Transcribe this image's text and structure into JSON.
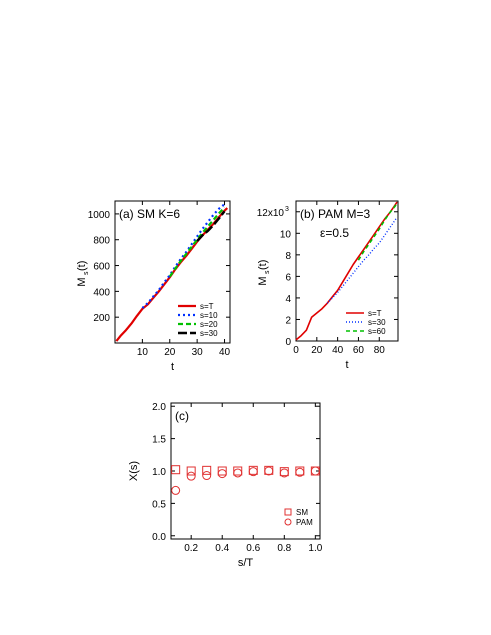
{
  "chart_data": [
    {
      "type": "line",
      "panel_label": "(a) SM  K=6",
      "xlabel": "t",
      "ylabel": "M",
      "ylabel_sub": "s",
      "ylabel_tail": "(t)",
      "xlim": [
        0,
        42
      ],
      "ylim": [
        0,
        1100
      ],
      "xticks": [
        10,
        20,
        30,
        40
      ],
      "yticks": [
        200,
        400,
        600,
        800,
        1000
      ],
      "legend_position": "bottom-right",
      "series": [
        {
          "name": "s=T",
          "color": "#e00000",
          "dash": "solid",
          "width": 2.2,
          "x": [
            0.5,
            2,
            4,
            6,
            8,
            10,
            12,
            14,
            16,
            18,
            20,
            22,
            24,
            26,
            28,
            30,
            32,
            34,
            36,
            38,
            40,
            41
          ],
          "y": [
            15,
            55,
            100,
            150,
            210,
            265,
            300,
            350,
            400,
            455,
            510,
            570,
            625,
            675,
            730,
            785,
            835,
            880,
            925,
            975,
            1025,
            1045
          ]
        },
        {
          "name": "s=10",
          "color": "#0030ff",
          "dash": "2,3",
          "width": 2.2,
          "x": [
            10,
            12,
            14,
            16,
            18,
            20,
            22,
            24,
            26,
            28,
            30,
            32,
            34,
            36,
            38,
            40
          ],
          "y": [
            270,
            310,
            360,
            410,
            470,
            525,
            590,
            650,
            705,
            765,
            825,
            885,
            940,
            995,
            1040,
            1075
          ]
        },
        {
          "name": "s=20",
          "color": "#00c000",
          "dash": "5,3",
          "width": 2.2,
          "x": [
            20,
            22,
            24,
            26,
            28,
            30,
            32,
            34,
            36,
            38,
            40
          ],
          "y": [
            515,
            575,
            635,
            690,
            745,
            800,
            855,
            905,
            955,
            1005,
            1050
          ]
        },
        {
          "name": "s=30",
          "color": "#000000",
          "dash": "9,3",
          "width": 2.4,
          "x": [
            30,
            32,
            34,
            36,
            38,
            40
          ],
          "y": [
            790,
            835,
            870,
            915,
            965,
            1020
          ]
        }
      ]
    },
    {
      "type": "line",
      "panel_label": "(b) PAM  M=3",
      "annotation": "ε=0.5",
      "xlabel": "t",
      "ylabel": "M",
      "ylabel_sub": "s",
      "ylabel_tail": "(t)",
      "xlim": [
        0,
        98
      ],
      "ylim": [
        0,
        13000
      ],
      "xticks": [
        0,
        20,
        40,
        60,
        80
      ],
      "yticks": [
        0,
        2,
        4,
        6,
        8,
        10,
        12
      ],
      "ytick_top_label": "12x10",
      "ytick_top_exp": "3",
      "legend_position": "bottom-right",
      "series": [
        {
          "name": "s=T",
          "color": "#e00000",
          "dash": "solid",
          "width": 1.6,
          "x": [
            0,
            5,
            10,
            15,
            20,
            25,
            30,
            35,
            40,
            45,
            50,
            55,
            60,
            65,
            70,
            75,
            80,
            85,
            90,
            95,
            97
          ],
          "y": [
            100,
            500,
            1000,
            2200,
            2600,
            3000,
            3500,
            4100,
            4700,
            5500,
            6300,
            7100,
            7800,
            8500,
            9200,
            9900,
            10600,
            11300,
            11900,
            12600,
            12900
          ]
        },
        {
          "name": "s=30",
          "color": "#0030ff",
          "dash": "1,2",
          "width": 1.4,
          "x": [
            30,
            35,
            40,
            45,
            50,
            55,
            60,
            65,
            70,
            75,
            80,
            85,
            90,
            95,
            97
          ],
          "y": [
            3500,
            4000,
            4500,
            5100,
            5700,
            6300,
            6900,
            7500,
            8000,
            8600,
            9100,
            9800,
            10500,
            11200,
            11500
          ]
        },
        {
          "name": "s=60",
          "color": "#00c000",
          "dash": "4,3",
          "width": 1.6,
          "x": [
            60,
            65,
            70,
            75,
            80,
            85,
            90,
            95,
            97
          ],
          "y": [
            7500,
            8300,
            9000,
            9700,
            10400,
            11200,
            11900,
            12500,
            12800
          ]
        }
      ]
    },
    {
      "type": "scatter",
      "panel_label": "(c)",
      "xlabel": "s/T",
      "ylabel": "X(s)",
      "xlim": [
        0.07,
        1.03
      ],
      "ylim": [
        -0.05,
        2.05
      ],
      "xticks": [
        0.2,
        0.4,
        0.6,
        0.8,
        1.0
      ],
      "xtick_labels": [
        "0.2",
        "0.4",
        "0.6",
        "0.8",
        "1.0"
      ],
      "yticks": [
        0.0,
        0.5,
        1.0,
        1.5,
        2.0
      ],
      "ytick_labels": [
        "0.0",
        "0.5",
        "1.0",
        "1.5",
        "2.0"
      ],
      "legend_position": "bottom-right",
      "series": [
        {
          "name": "SM",
          "marker": "square",
          "color": "#e03030",
          "x": [
            0.1,
            0.2,
            0.3,
            0.4,
            0.5,
            0.6,
            0.7,
            0.8,
            0.9,
            1.0
          ],
          "y": [
            1.02,
            1.0,
            1.01,
            1.0,
            1.0,
            1.01,
            1.01,
            0.99,
            1.0,
            1.0
          ]
        },
        {
          "name": "PAM",
          "marker": "circle",
          "color": "#e03030",
          "x": [
            0.1,
            0.2,
            0.3,
            0.4,
            0.5,
            0.6,
            0.7,
            0.8,
            0.9,
            1.0
          ],
          "y": [
            0.7,
            0.92,
            0.93,
            0.96,
            0.97,
            0.99,
            1.0,
            0.97,
            0.98,
            1.0
          ]
        }
      ]
    }
  ]
}
